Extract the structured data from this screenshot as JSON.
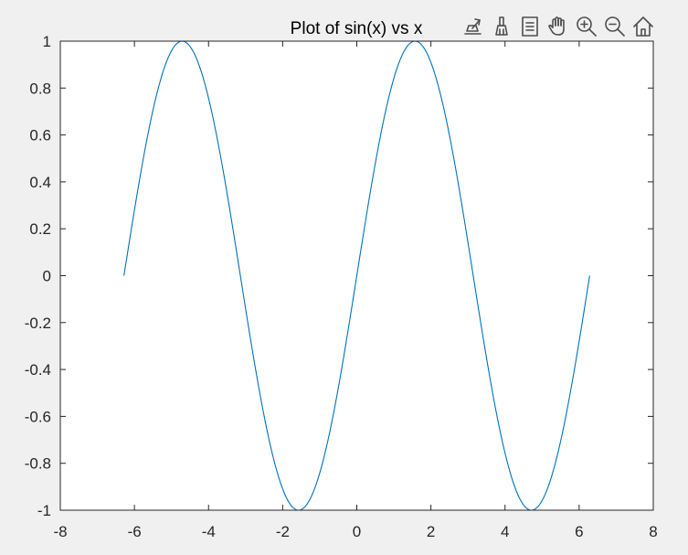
{
  "figure": {
    "background_color": "#f0f0f0",
    "axes_background_color": "#ffffff",
    "axis_color": "#262626",
    "line_color": "#0072bd"
  },
  "toolbar": {
    "buttons": [
      {
        "name": "export-icon"
      },
      {
        "name": "brush-icon"
      },
      {
        "name": "datatip-icon"
      },
      {
        "name": "pan-hand-icon"
      },
      {
        "name": "zoom-in-icon"
      },
      {
        "name": "zoom-out-icon"
      },
      {
        "name": "home-icon"
      }
    ]
  },
  "chart_data": {
    "type": "line",
    "title": "Plot of sin(x) vs x",
    "xlabel": "",
    "ylabel": "",
    "xlim": [
      -8,
      8
    ],
    "ylim": [
      -1,
      1
    ],
    "xticks": [
      -8,
      -6,
      -4,
      -2,
      0,
      2,
      4,
      6,
      8
    ],
    "yticks": [
      -1,
      -0.8,
      -0.6,
      -0.4,
      -0.2,
      0,
      0.2,
      0.4,
      0.6,
      0.8,
      1
    ],
    "xtick_labels": [
      "-8",
      "-6",
      "-4",
      "-2",
      "0",
      "2",
      "4",
      "6",
      "8"
    ],
    "ytick_labels": [
      "-1",
      "-0.8",
      "-0.6",
      "-0.4",
      "-0.2",
      "0",
      "0.2",
      "0.4",
      "0.6",
      "0.8",
      "1"
    ],
    "grid": false,
    "box": true,
    "series": [
      {
        "color": "#0072bd",
        "x": [
          -6.2832,
          -5.4978,
          -4.7124,
          -3.927,
          -3.1416,
          -2.3562,
          -1.5708,
          -0.7854,
          0,
          0.7854,
          1.5708,
          2.3562,
          3.1416,
          3.927,
          4.7124,
          5.4978,
          6.2832
        ],
        "y": [
          0,
          0.7071,
          1,
          0.7071,
          0,
          -0.7071,
          -1,
          -0.7071,
          0,
          0.7071,
          1,
          0.7071,
          0,
          -0.7071,
          -1,
          -0.7071,
          0
        ]
      }
    ]
  }
}
